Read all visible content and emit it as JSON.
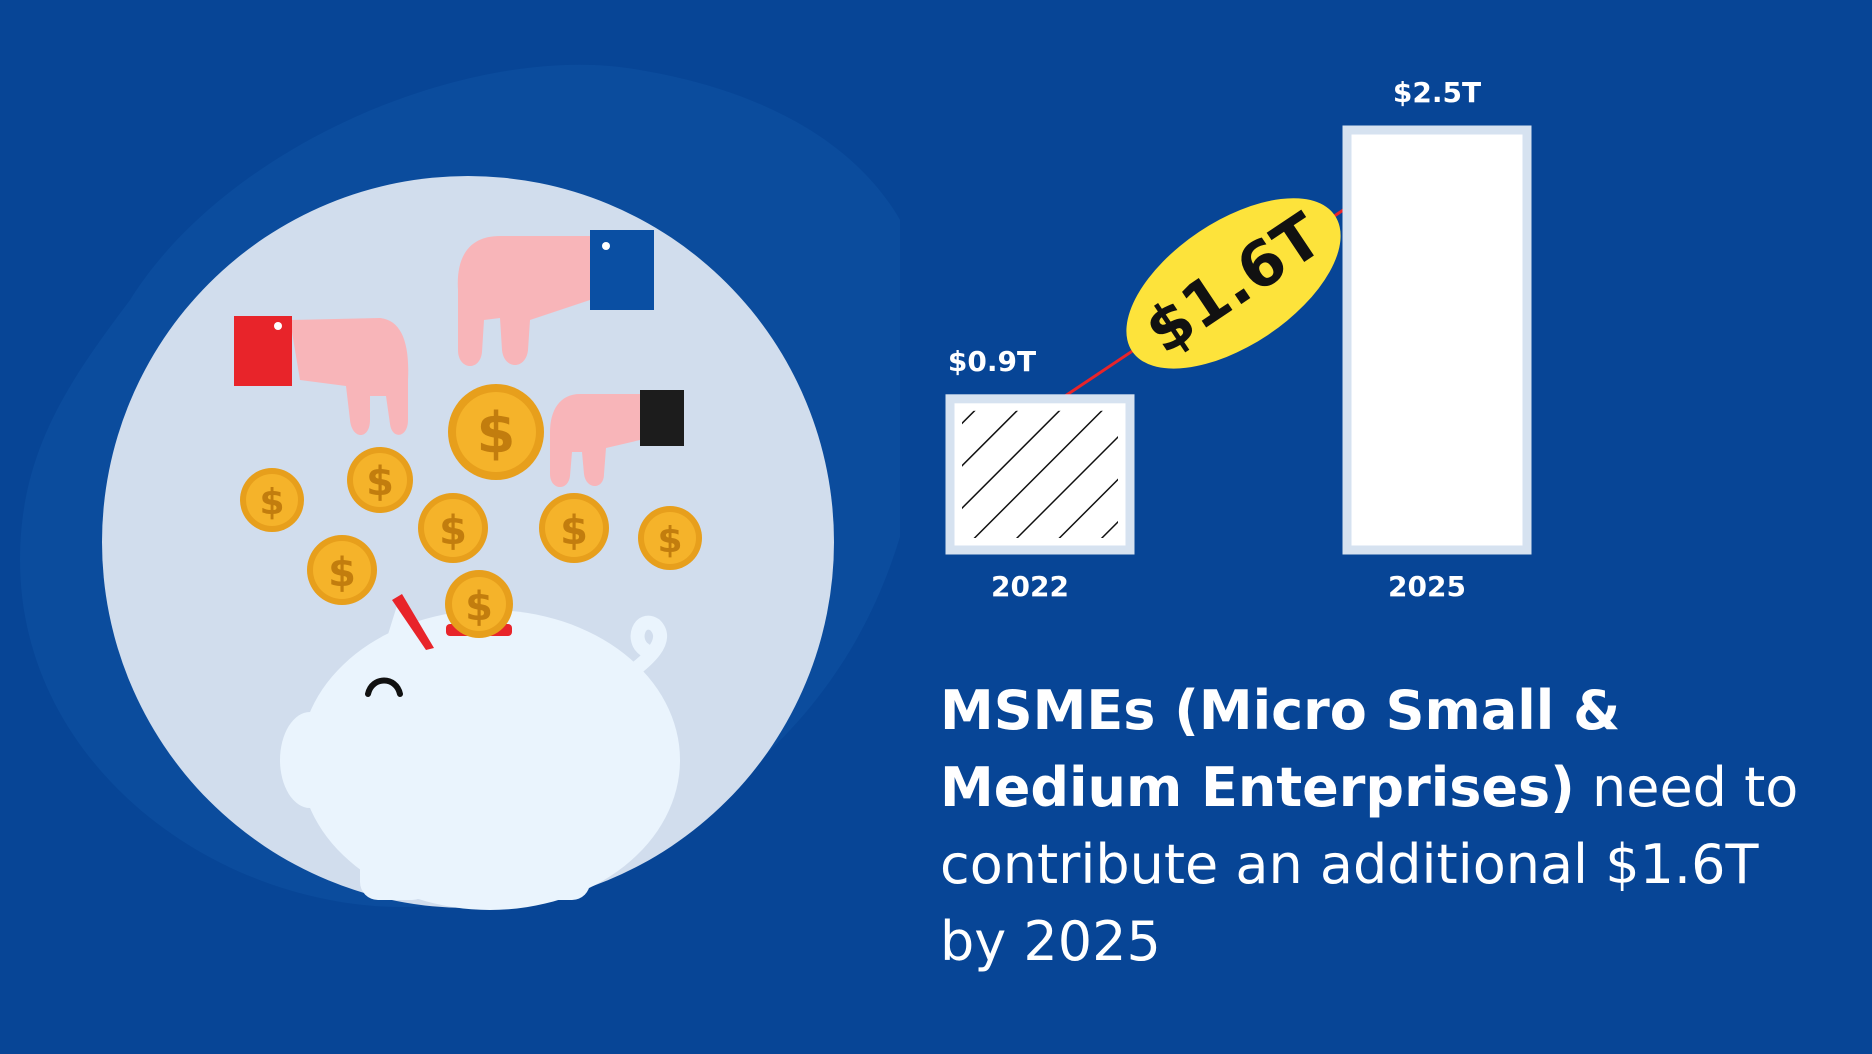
{
  "chart_data": {
    "type": "bar",
    "categories": [
      "2022",
      "2025"
    ],
    "values": [
      0.9,
      2.5
    ],
    "value_labels": [
      "$0.9T",
      "$2.5T"
    ],
    "difference_label": "$1.6T",
    "bar_patterns": [
      "hatched",
      "solid"
    ],
    "ylim": [
      0,
      2.5
    ],
    "grid": false,
    "colors": {
      "bar_fill": "#ffffff",
      "bar_border": "#d6e2f0",
      "badge": "#fde33b",
      "arrow": "#e8242a",
      "text": "#ffffff"
    }
  },
  "headline": {
    "bold": "MSMEs (Micro Small & Medium Enterprises)",
    "regular": " need to contribute an additional $1.6T by 2025"
  },
  "illustration": {
    "subject": "piggy-bank",
    "icons": [
      "hand-red-cuff-icon",
      "hand-blue-cuff-icon",
      "hand-black-cuff-icon",
      "dollar-coin-icon",
      "piggy-bank-icon"
    ],
    "colors": {
      "background": "#074596",
      "circle": "#d1dded",
      "coin": "#f5b32a",
      "hand": "#f8b5b9",
      "red_cuff": "#e8242a",
      "blue_cuff": "#0a4fa3",
      "black_cuff": "#1c1c1c"
    }
  }
}
